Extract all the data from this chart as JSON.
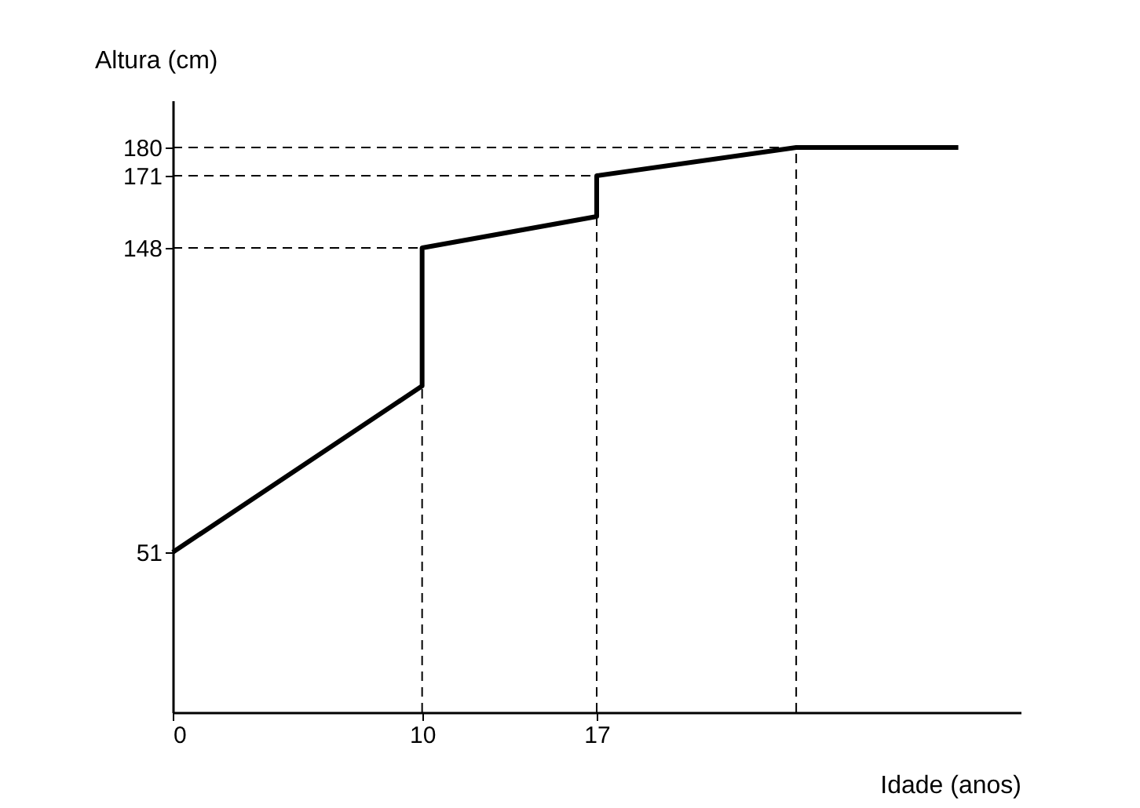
{
  "chart_data": {
    "type": "line",
    "xlabel": "Idade (anos)",
    "ylabel": "Altura (cm)",
    "xlim": [
      0,
      34
    ],
    "ylim": [
      0,
      195
    ],
    "xticks": [
      0,
      10,
      17
    ],
    "yticks": [
      51,
      148,
      171,
      180
    ],
    "grid": false,
    "marker": "none",
    "series": [
      {
        "color": "#000000",
        "line_style": "solid",
        "x": [
          0,
          10,
          10,
          17,
          17,
          25,
          31.5
        ],
        "values": [
          51,
          104,
          148,
          158,
          171,
          180,
          180
        ]
      },
      {
        "type": "line",
        "color": "#000000",
        "line_style": "dashed",
        "x": [
          0,
          10
        ],
        "values": [
          148,
          148
        ]
      },
      {
        "type": "line",
        "color": "#000000",
        "line_style": "dashed",
        "x": [
          0,
          17
        ],
        "values": [
          171,
          171
        ]
      },
      {
        "type": "line",
        "color": "#000000",
        "line_style": "dashed",
        "x": [
          0,
          25
        ],
        "values": [
          180,
          180
        ]
      },
      {
        "type": "line",
        "color": "#000000",
        "line_style": "dashed",
        "x": [
          10,
          10
        ],
        "values": [
          0,
          104
        ]
      },
      {
        "type": "line",
        "color": "#000000",
        "line_style": "dashed",
        "x": [
          17,
          17
        ],
        "values": [
          0,
          158
        ]
      },
      {
        "type": "line",
        "color": "#000000",
        "line_style": "dashed",
        "x": [
          25,
          25
        ],
        "values": [
          0,
          180
        ]
      }
    ]
  }
}
